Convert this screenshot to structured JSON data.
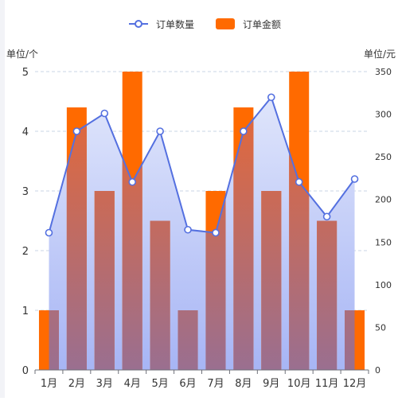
{
  "chart_data": {
    "type": "bar",
    "categories": [
      "1月",
      "2月",
      "3月",
      "4月",
      "5月",
      "6月",
      "7月",
      "8月",
      "9月",
      "10月",
      "11月",
      "12月"
    ],
    "series": [
      {
        "name": "订单数量",
        "kind": "line",
        "axis": "left",
        "values": [
          2.3,
          4.0,
          4.3,
          3.15,
          4.0,
          2.35,
          2.3,
          4.0,
          4.57,
          3.15,
          2.57,
          3.2
        ]
      },
      {
        "name": "订单金额",
        "kind": "bar",
        "axis": "right",
        "values": [
          70,
          308,
          210,
          350,
          175,
          70,
          210,
          308,
          210,
          350,
          175,
          70
        ]
      }
    ],
    "y_left": {
      "label": "单位/个",
      "ylim": [
        0,
        5
      ],
      "ticks": [
        0,
        1,
        2,
        3,
        4,
        5
      ]
    },
    "y_right": {
      "label": "单位/元",
      "ylim": [
        0,
        350
      ],
      "ticks": [
        0,
        50,
        100,
        150,
        200,
        250,
        300,
        350
      ]
    },
    "legend_position": "top-center",
    "grid": true,
    "colors": {
      "line": "#5470e0",
      "area_top": "#dfe5fb",
      "area_bottom": "#a7b5f5",
      "bar_orange": "#ff6a00",
      "bar_blend_top": "#e2683a",
      "bar_blend_bottom": "#9a6f90",
      "grid": "#c9d6e6",
      "axis_text": "#333333"
    }
  }
}
